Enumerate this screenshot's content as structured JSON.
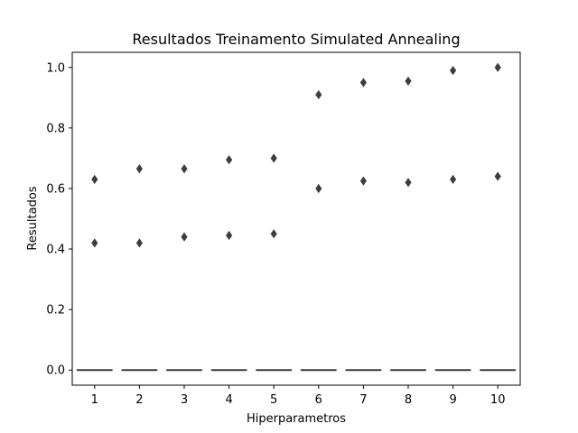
{
  "chart_data": {
    "type": "box",
    "title": "Resultados Treinamento Simulated Annealing",
    "xlabel": "Hiperparametros",
    "ylabel": "Resultados",
    "categories": [
      "1",
      "2",
      "3",
      "4",
      "5",
      "6",
      "7",
      "8",
      "9",
      "10"
    ],
    "ylim": [
      -0.05,
      1.05
    ],
    "yticks": [
      "0.0",
      "0.2",
      "0.4",
      "0.6",
      "0.8",
      "1.0"
    ],
    "grid": false,
    "box_values": [
      0,
      0,
      0,
      0,
      0,
      0,
      0,
      0,
      0,
      0
    ],
    "outliers": [
      [
        0.42,
        0.63
      ],
      [
        0.42,
        0.665
      ],
      [
        0.44,
        0.665
      ],
      [
        0.445,
        0.695
      ],
      [
        0.45,
        0.7
      ],
      [
        0.6,
        0.91
      ],
      [
        0.625,
        0.95
      ],
      [
        0.62,
        0.955
      ],
      [
        0.63,
        0.99
      ],
      [
        0.64,
        1.0
      ]
    ],
    "colors": {
      "box": "#3a3a3a",
      "marker": "#3d3d3d",
      "axis": "#000000"
    }
  }
}
